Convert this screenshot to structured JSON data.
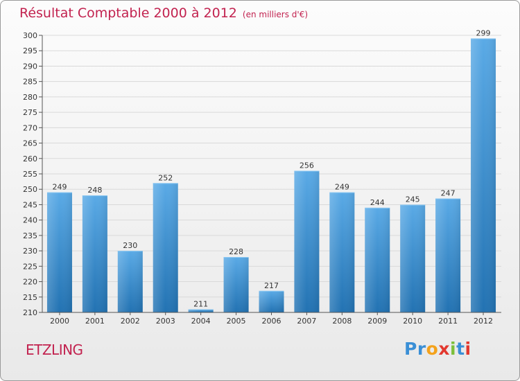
{
  "header": {
    "title": "Résultat Comptable 2000 à 2012",
    "subtitle": "(en milliers d'€)"
  },
  "footer": {
    "place": "ETZLING",
    "logo_letters": [
      "P",
      "r",
      "o",
      "x",
      "i",
      "t",
      "i"
    ]
  },
  "colors": {
    "bar_top": "#5aaae6",
    "bar_bottom": "#2272b2",
    "title": "#c2224f",
    "logo": [
      "#3a8fd6",
      "#3a8fd6",
      "#f4a21c",
      "#e2382e",
      "#7cbf3a",
      "#3a8fd6",
      "#e2382e"
    ]
  },
  "chart_data": {
    "type": "bar",
    "title": "Résultat Comptable 2000 à 2012",
    "xlabel": "",
    "ylabel": "en milliers d'€",
    "categories": [
      "2000",
      "2001",
      "2002",
      "2003",
      "2004",
      "2005",
      "2006",
      "2007",
      "2008",
      "2009",
      "2010",
      "2011",
      "2012"
    ],
    "values": [
      249,
      248,
      230,
      252,
      211,
      228,
      217,
      256,
      249,
      244,
      245,
      247,
      299
    ],
    "ylim": [
      210,
      300
    ],
    "yticks": [
      210,
      215,
      220,
      225,
      230,
      235,
      240,
      245,
      250,
      255,
      260,
      265,
      270,
      275,
      280,
      285,
      290,
      295,
      300
    ],
    "grid": true
  }
}
